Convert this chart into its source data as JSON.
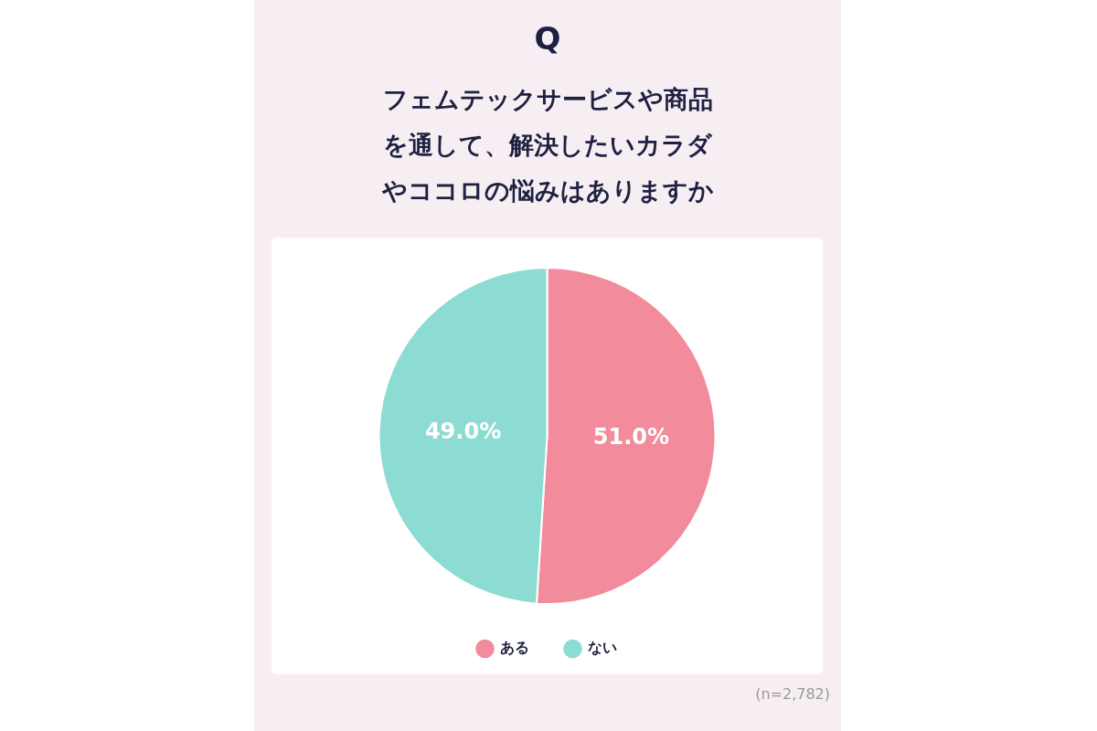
{
  "chart_data": {
    "type": "pie",
    "title": "Q",
    "subtitle": "フェムテックサービスや商品を通して、解決したいカラダやココロの悩みはありますか",
    "categories": [
      "ある",
      "ない"
    ],
    "values": [
      51.0,
      49.0
    ],
    "colors": [
      "#f28b9b",
      "#8cdcd3"
    ],
    "value_labels": [
      "51.0%",
      "49.0%"
    ],
    "legend": "bottom",
    "annotations": [
      "(n=2,782)"
    ]
  }
}
